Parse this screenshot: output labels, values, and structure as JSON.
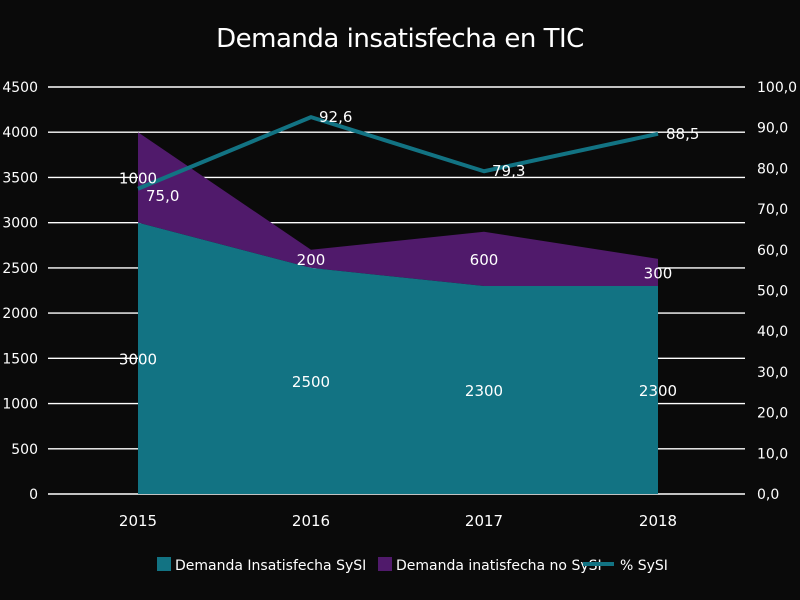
{
  "chart_data": {
    "type": "area",
    "title": "Demanda insatisfecha en TIC",
    "categories": [
      "2015",
      "2016",
      "2017",
      "2018"
    ],
    "series": [
      {
        "name": "Demanda Insatisfecha SySI",
        "kind": "area",
        "axis": "left",
        "values": [
          3000,
          2500,
          2300,
          2300
        ],
        "labels": [
          "3000",
          "2500",
          "2300",
          "2300"
        ],
        "color": "#127383"
      },
      {
        "name": "Demanda inatisfecha no SySI",
        "kind": "area",
        "axis": "left",
        "values": [
          1000,
          200,
          600,
          300
        ],
        "labels": [
          "1000",
          "200",
          "600",
          "300"
        ],
        "color": "#501a6b"
      },
      {
        "name": "% SySI",
        "kind": "line",
        "axis": "right",
        "values": [
          75.0,
          92.6,
          79.3,
          88.5
        ],
        "labels": [
          "75,0",
          "92,6",
          "79,3",
          "88,5"
        ],
        "color": "#127383"
      }
    ],
    "y_left": {
      "ylim": [
        0,
        4500
      ],
      "ticks": [
        "0",
        "500",
        "1000",
        "1500",
        "2000",
        "2500",
        "3000",
        "3500",
        "4000",
        "4500"
      ]
    },
    "y_right": {
      "ylim": [
        0,
        100
      ],
      "ticks": [
        "0,0",
        "10,0",
        "20,0",
        "30,0",
        "40,0",
        "50,0",
        "60,0",
        "70,0",
        "80,0",
        "90,0",
        "100,0"
      ]
    },
    "grid": true,
    "legend": "bottom"
  }
}
